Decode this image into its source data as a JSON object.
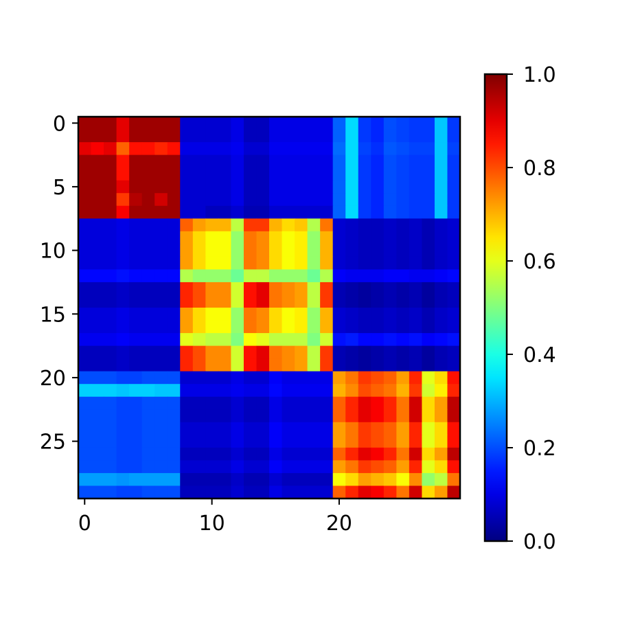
{
  "chart_data": {
    "type": "heatmap",
    "rows": 30,
    "cols": 30,
    "colormap": "jet",
    "color_range": [
      0.0,
      1.0
    ],
    "x_ticks": [
      0,
      10,
      20
    ],
    "y_ticks": [
      0,
      5,
      10,
      15,
      20,
      25
    ],
    "colorbar_ticks": [
      {
        "value": 0.0,
        "label": "0.0"
      },
      {
        "value": 0.2,
        "label": "0.2"
      },
      {
        "value": 0.4,
        "label": "0.4"
      },
      {
        "value": 0.6,
        "label": "0.6"
      },
      {
        "value": 0.8,
        "label": "0.8"
      },
      {
        "value": 1.0,
        "label": "1.0"
      }
    ],
    "row_profiles": {
      "A": [
        0.97,
        0.97,
        0.97,
        0.9,
        0.97,
        0.97,
        0.97,
        0.97,
        0.08,
        0.08,
        0.08,
        0.08,
        0.1,
        0.06,
        0.06,
        0.1,
        0.1,
        0.1,
        0.1,
        0.1,
        0.22,
        0.34,
        0.18,
        0.16,
        0.2,
        0.19,
        0.18,
        0.18,
        0.32,
        0.18
      ],
      "A_low": [
        0.9,
        0.88,
        0.9,
        0.78,
        0.86,
        0.86,
        0.84,
        0.86,
        0.1,
        0.1,
        0.1,
        0.1,
        0.11,
        0.08,
        0.08,
        0.11,
        0.11,
        0.11,
        0.11,
        0.11,
        0.23,
        0.34,
        0.19,
        0.17,
        0.21,
        0.2,
        0.19,
        0.19,
        0.32,
        0.19
      ],
      "A_mid": [
        0.97,
        0.97,
        0.97,
        0.86,
        0.97,
        0.97,
        0.97,
        0.97,
        0.08,
        0.08,
        0.08,
        0.08,
        0.1,
        0.06,
        0.06,
        0.1,
        0.1,
        0.1,
        0.1,
        0.1,
        0.22,
        0.34,
        0.18,
        0.16,
        0.2,
        0.19,
        0.18,
        0.18,
        0.32,
        0.18
      ],
      "A_dk": [
        0.97,
        0.97,
        0.97,
        0.84,
        0.97,
        0.95,
        0.97,
        0.97,
        0.08,
        0.08,
        0.08,
        0.08,
        0.1,
        0.06,
        0.06,
        0.1,
        0.1,
        0.1,
        0.1,
        0.1,
        0.22,
        0.34,
        0.18,
        0.16,
        0.2,
        0.19,
        0.18,
        0.18,
        0.32,
        0.18
      ],
      "A_r6": [
        0.97,
        0.97,
        0.97,
        0.82,
        0.95,
        0.97,
        0.92,
        0.97,
        0.08,
        0.08,
        0.08,
        0.08,
        0.1,
        0.06,
        0.06,
        0.1,
        0.1,
        0.1,
        0.1,
        0.1,
        0.22,
        0.34,
        0.18,
        0.16,
        0.2,
        0.19,
        0.18,
        0.18,
        0.32,
        0.18
      ],
      "A_r7": [
        0.97,
        0.97,
        0.97,
        0.88,
        0.97,
        0.97,
        0.97,
        0.97,
        0.08,
        0.08,
        0.06,
        0.06,
        0.08,
        0.05,
        0.05,
        0.08,
        0.08,
        0.08,
        0.08,
        0.08,
        0.22,
        0.34,
        0.18,
        0.16,
        0.2,
        0.19,
        0.18,
        0.18,
        0.32,
        0.18
      ],
      "B": [
        0.09,
        0.09,
        0.09,
        0.1,
        0.09,
        0.09,
        0.09,
        0.09,
        0.78,
        0.72,
        0.7,
        0.7,
        0.56,
        0.82,
        0.82,
        0.7,
        0.66,
        0.68,
        0.55,
        0.76,
        0.08,
        0.07,
        0.06,
        0.06,
        0.07,
        0.06,
        0.07,
        0.05,
        0.07,
        0.08
      ],
      "B_hi": [
        0.09,
        0.09,
        0.09,
        0.1,
        0.09,
        0.09,
        0.09,
        0.09,
        0.72,
        0.66,
        0.62,
        0.62,
        0.52,
        0.76,
        0.74,
        0.66,
        0.62,
        0.64,
        0.52,
        0.7,
        0.08,
        0.07,
        0.06,
        0.06,
        0.07,
        0.06,
        0.07,
        0.05,
        0.07,
        0.08
      ],
      "B_mid": [
        0.13,
        0.13,
        0.13,
        0.14,
        0.13,
        0.13,
        0.13,
        0.13,
        0.55,
        0.52,
        0.52,
        0.52,
        0.48,
        0.56,
        0.56,
        0.52,
        0.52,
        0.52,
        0.48,
        0.55,
        0.12,
        0.11,
        0.11,
        0.11,
        0.12,
        0.12,
        0.11,
        0.11,
        0.12,
        0.13
      ],
      "B_strong": [
        0.06,
        0.06,
        0.06,
        0.07,
        0.06,
        0.06,
        0.06,
        0.06,
        0.84,
        0.8,
        0.74,
        0.74,
        0.58,
        0.86,
        0.9,
        0.76,
        0.74,
        0.72,
        0.56,
        0.82,
        0.05,
        0.04,
        0.03,
        0.04,
        0.05,
        0.04,
        0.05,
        0.03,
        0.05,
        0.06
      ],
      "B_soft": [
        0.11,
        0.11,
        0.11,
        0.12,
        0.11,
        0.11,
        0.11,
        0.11,
        0.6,
        0.58,
        0.56,
        0.56,
        0.5,
        0.62,
        0.6,
        0.56,
        0.56,
        0.56,
        0.5,
        0.58,
        0.14,
        0.15,
        0.13,
        0.13,
        0.14,
        0.13,
        0.14,
        0.12,
        0.13,
        0.14
      ],
      "C": [
        0.2,
        0.2,
        0.2,
        0.19,
        0.19,
        0.2,
        0.2,
        0.2,
        0.08,
        0.08,
        0.08,
        0.08,
        0.1,
        0.08,
        0.08,
        0.12,
        0.1,
        0.1,
        0.1,
        0.1,
        0.72,
        0.76,
        0.82,
        0.8,
        0.78,
        0.72,
        0.84,
        0.6,
        0.66,
        0.86
      ],
      "C_cyan": [
        0.33,
        0.33,
        0.33,
        0.32,
        0.33,
        0.33,
        0.32,
        0.32,
        0.1,
        0.1,
        0.1,
        0.1,
        0.11,
        0.1,
        0.1,
        0.13,
        0.11,
        0.11,
        0.11,
        0.11,
        0.7,
        0.74,
        0.8,
        0.78,
        0.76,
        0.7,
        0.82,
        0.58,
        0.64,
        0.84
      ],
      "C_hi": [
        0.2,
        0.2,
        0.2,
        0.19,
        0.19,
        0.2,
        0.2,
        0.2,
        0.06,
        0.06,
        0.06,
        0.06,
        0.08,
        0.06,
        0.06,
        0.1,
        0.08,
        0.08,
        0.08,
        0.08,
        0.78,
        0.84,
        0.9,
        0.88,
        0.84,
        0.76,
        0.92,
        0.66,
        0.72,
        0.94
      ],
      "C_low": [
        0.28,
        0.28,
        0.28,
        0.27,
        0.28,
        0.28,
        0.28,
        0.28,
        0.05,
        0.05,
        0.05,
        0.05,
        0.07,
        0.05,
        0.05,
        0.08,
        0.06,
        0.06,
        0.06,
        0.06,
        0.62,
        0.66,
        0.72,
        0.7,
        0.68,
        0.62,
        0.74,
        0.52,
        0.56,
        0.76
      ]
    },
    "row_order": [
      "A",
      "A",
      "A_low",
      "A_mid",
      "A_mid",
      "A",
      "A_r6",
      "A_r7",
      "B",
      "B_hi",
      "B_hi",
      "B_hi",
      "B_mid",
      "B_strong",
      "B_strong",
      "B_hi",
      "B_hi",
      "B_soft",
      "B_strong",
      "B_strong",
      "C",
      "C_cyan",
      "C_hi",
      "C_hi",
      "C",
      "C",
      "C_hi",
      "C",
      "C_low",
      "C_hi"
    ]
  }
}
